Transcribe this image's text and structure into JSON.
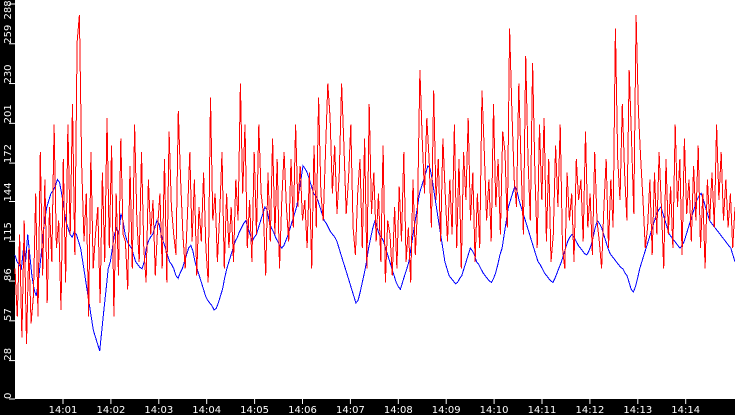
{
  "chart_data": {
    "type": "line",
    "title": "",
    "xlabel": "",
    "ylabel": "",
    "ylim": [
      0,
      288
    ],
    "y_ticks": [
      0,
      28,
      57,
      86,
      115,
      144,
      172,
      201,
      230,
      259,
      288
    ],
    "x_ticks": [
      "14:01",
      "14:02",
      "14:03",
      "14:04",
      "14:05",
      "14:06",
      "14:07",
      "14:08",
      "14:09",
      "14:10",
      "14:11",
      "14:12",
      "14:13",
      "14:14"
    ],
    "grid": false,
    "legend": null,
    "background": "#ffffff",
    "axis_background": "#000000",
    "series": [
      {
        "name": "red-series",
        "color": "#ff0000",
        "style": "spiky",
        "values": [
          95,
          60,
          120,
          45,
          130,
          40,
          110,
          55,
          75,
          150,
          60,
          180,
          90,
          160,
          70,
          140,
          100,
          200,
          110,
          130,
          65,
          175,
          85,
          200,
          120,
          215,
          105,
          260,
          280,
          170,
          115,
          150,
          60,
          180,
          95,
          120,
          140,
          70,
          165,
          100,
          205,
          110,
          185,
          60,
          150,
          90,
          190,
          120,
          115,
          80,
          170,
          95,
          200,
          130,
          100,
          180,
          110,
          85,
          160,
          120,
          145,
          90,
          125,
          150,
          95,
          175,
          85,
          195,
          140,
          120,
          105,
          210,
          160,
          120,
          95,
          135,
          180,
          115,
          160,
          90,
          140,
          115,
          165,
          110,
          85,
          220,
          130,
          150,
          100,
          135,
          180,
          95,
          150,
          110,
          140,
          100,
          160,
          130,
          230,
          150,
          200,
          110,
          145,
          100,
          180,
          120,
          200,
          150,
          135,
          90,
          165,
          115,
          190,
          120,
          175,
          95,
          145,
          180,
          140,
          115,
          175,
          125,
          200,
          140,
          170,
          130,
          145,
          110,
          165,
          95,
          185,
          125,
          220,
          150,
          130,
          180,
          230,
          205,
          150,
          185,
          135,
          165,
          230,
          185,
          135,
          160,
          200,
          125,
          105,
          150,
          175,
          110,
          190,
          95,
          215,
          135,
          165,
          115,
          150,
          100,
          185,
          85,
          130,
          120,
          90,
          140,
          95,
          155,
          115,
          180,
          100,
          125,
          85,
          160,
          105,
          140,
          240,
          190,
          150,
          205,
          175,
          125,
          225,
          145,
          175,
          115,
          190,
          150,
          115,
          160,
          120,
          200,
          110,
          175,
          95,
          180,
          145,
          205,
          130,
          165,
          100,
          150,
          110,
          225,
          180,
          130,
          160,
          115,
          215,
          140,
          175,
          120,
          195,
          180,
          125,
          270,
          210,
          160,
          140,
          230,
          170,
          120,
          250,
          175,
          130,
          245,
          165,
          110,
          200,
          145,
          205,
          115,
          175,
          100,
          120,
          185,
          140,
          200,
          110,
          95,
          165,
          130,
          150,
          100,
          175,
          145,
          160,
          115,
          195,
          125,
          150,
          105,
          180,
          130,
          115,
          95,
          140,
          175,
          110,
          160,
          125,
          270,
          175,
          145,
          215,
          165,
          130,
          240,
          190,
          135,
          280,
          210,
          175,
          145,
          110,
          125,
          160,
          105,
          165,
          120,
          180,
          140,
          95,
          175,
          120,
          155,
          110,
          200,
          140,
          175,
          105,
          190,
          135,
          160,
          115,
          170,
          130,
          185,
          110,
          150,
          95,
          160,
          130,
          165,
          125,
          200,
          145,
          180,
          130,
          160,
          125,
          150,
          110,
          140
        ],
        "points_note": "approximate, sampled across x=15..735"
      },
      {
        "name": "blue-series",
        "color": "#0000ff",
        "style": "smooth",
        "values": [
          105,
          100,
          98,
          95,
          110,
          100,
          120,
          105,
          90,
          80,
          75,
          85,
          100,
          115,
          130,
          140,
          145,
          150,
          152,
          155,
          160,
          158,
          150,
          140,
          130,
          125,
          120,
          118,
          122,
          120,
          115,
          110,
          100,
          90,
          80,
          70,
          60,
          50,
          45,
          40,
          35,
          50,
          65,
          80,
          95,
          100,
          110,
          120,
          125,
          120,
          135,
          130,
          120,
          115,
          112,
          110,
          105,
          100,
          98,
          96,
          95,
          100,
          110,
          115,
          118,
          120,
          125,
          130,
          128,
          120,
          115,
          110,
          105,
          100,
          98,
          95,
          90,
          88,
          92,
          95,
          100,
          105,
          110,
          112,
          108,
          100,
          95,
          90,
          85,
          80,
          75,
          72,
          70,
          68,
          65,
          66,
          70,
          75,
          80,
          88,
          95,
          100,
          105,
          110,
          115,
          118,
          122,
          125,
          128,
          130,
          125,
          120,
          115,
          118,
          120,
          125,
          130,
          135,
          140,
          138,
          130,
          125,
          122,
          118,
          115,
          112,
          110,
          112,
          116,
          120,
          125,
          130,
          135,
          140,
          150,
          160,
          170,
          168,
          165,
          160,
          155,
          150,
          148,
          145,
          140,
          135,
          130,
          128,
          125,
          122,
          120,
          118,
          115,
          110,
          105,
          100,
          95,
          90,
          85,
          80,
          75,
          70,
          72,
          78,
          85,
          92,
          100,
          110,
          118,
          125,
          130,
          125,
          120,
          118,
          115,
          110,
          105,
          100,
          95,
          90,
          85,
          82,
          80,
          85,
          90,
          95,
          100,
          110,
          120,
          130,
          140,
          150,
          155,
          160,
          165,
          170,
          168,
          160,
          150,
          140,
          130,
          120,
          110,
          100,
          95,
          90,
          88,
          86,
          84,
          85,
          88,
          90,
          95,
          100,
          105,
          110,
          108,
          105,
          100,
          98,
          95,
          92,
          90,
          88,
          86,
          85,
          88,
          92,
          98,
          105,
          110,
          120,
          130,
          140,
          145,
          150,
          155,
          152,
          145,
          140,
          135,
          130,
          125,
          120,
          115,
          110,
          105,
          100,
          98,
          95,
          92,
          90,
          88,
          86,
          85,
          88,
          92,
          96,
          100,
          105,
          110,
          115,
          118,
          120,
          118,
          115,
          112,
          110,
          108,
          106,
          105,
          108,
          112,
          118,
          125,
          130,
          128,
          125,
          120,
          115,
          110,
          106,
          104,
          102,
          100,
          98,
          96,
          95,
          92,
          90,
          85,
          80,
          78,
          82,
          88,
          95,
          100,
          105,
          110,
          115,
          120,
          125,
          130,
          135,
          138,
          140,
          135,
          130,
          125,
          120,
          118,
          116,
          114,
          112,
          110,
          112,
          115,
          120,
          125,
          130,
          135,
          140,
          145,
          148,
          150,
          146,
          140,
          135,
          130,
          128,
          126,
          124,
          122,
          120,
          118,
          116,
          114,
          112,
          110,
          105,
          100
        ]
      }
    ]
  },
  "y_axis": {
    "labels": [
      "0",
      "28",
      "57",
      "86",
      "115",
      "144",
      "172",
      "201",
      "230",
      "259",
      "288"
    ]
  },
  "x_axis": {
    "labels": [
      "14:01",
      "14:02",
      "14:03",
      "14:04",
      "14:05",
      "14:06",
      "14:07",
      "14:08",
      "14:09",
      "14:10",
      "14:11",
      "14:12",
      "14:13",
      "14:14"
    ]
  }
}
